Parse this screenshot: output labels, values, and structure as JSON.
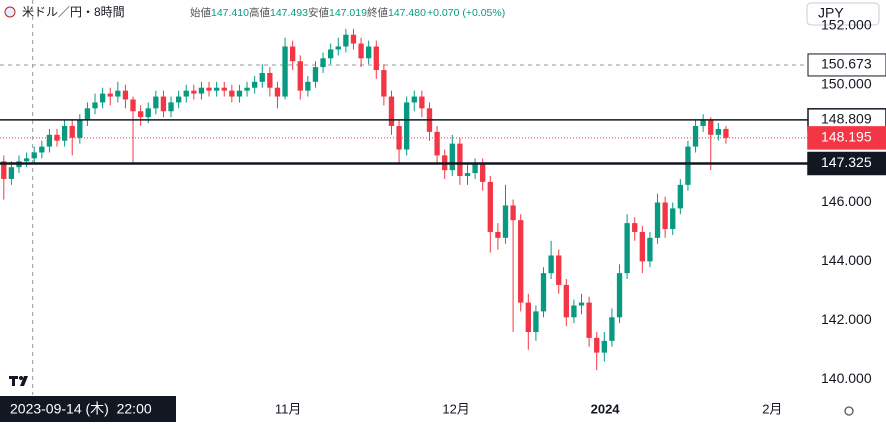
{
  "chart_data": {
    "type": "candlestick",
    "header": {
      "symbol": "米ドル／円・8時間",
      "open_label": "始値",
      "open": "147.410",
      "high_label": "高値",
      "high": "147.493",
      "low_label": "安値",
      "low": "147.019",
      "close_label": "終値",
      "close": "147.480",
      "change": "+0.070 (+0.05%)"
    },
    "currency": "JPY",
    "up_color": "#089981",
    "down_color": "#f23645",
    "open": [
      147.4,
      146.8,
      147.2,
      147.4,
      147.5,
      147.7,
      147.9,
      148.3,
      148.1,
      148.6,
      148.2,
      148.8,
      149.2,
      149.4,
      149.7,
      149.6,
      149.8,
      149.5,
      149.1,
      148.9,
      149.2,
      149.6,
      149.1,
      149.4,
      149.6,
      149.8,
      149.7,
      149.9,
      149.8,
      149.9,
      149.8,
      149.6,
      149.8,
      149.9,
      150.1,
      150.4,
      149.9,
      149.6,
      151.3,
      150.8,
      149.8,
      150.1,
      150.6,
      150.9,
      151.2,
      151.3,
      151.7,
      151.4,
      150.9,
      151.3,
      150.5,
      149.6,
      148.6,
      147.8,
      149.4,
      149.6,
      149.2,
      148.4,
      147.6,
      147.1,
      148.0,
      146.9,
      147.0,
      147.3,
      146.7,
      145.0,
      144.8,
      145.9,
      145.4,
      142.6,
      141.6,
      142.3,
      143.6,
      144.2,
      143.2,
      142.1,
      142.5,
      142.6,
      141.4,
      140.9,
      141.3,
      142.1,
      143.6,
      145.3,
      145.0,
      144.0,
      144.8,
      146.0,
      145.1,
      145.8,
      146.6,
      147.9,
      148.6,
      148.8,
      148.3,
      148.5
    ],
    "high": [
      147.6,
      147.4,
      147.6,
      147.7,
      147.9,
      148.1,
      148.5,
      148.5,
      148.8,
      148.8,
      149.0,
      149.4,
      149.7,
      149.9,
      149.9,
      150.1,
      150.0,
      149.6,
      149.3,
      149.4,
      149.8,
      149.8,
      149.6,
      149.8,
      150.0,
      150.0,
      150.1,
      150.1,
      150.1,
      150.1,
      150.0,
      150.0,
      150.1,
      150.3,
      150.7,
      150.6,
      150.1,
      151.6,
      151.5,
      151.0,
      150.3,
      150.8,
      151.1,
      151.4,
      151.6,
      151.9,
      151.9,
      151.6,
      151.5,
      151.5,
      150.7,
      149.8,
      148.8,
      149.6,
      149.8,
      149.8,
      149.4,
      148.6,
      147.8,
      148.3,
      148.2,
      147.3,
      147.5,
      147.5,
      146.9,
      145.3,
      146.6,
      146.1,
      145.6,
      142.9,
      142.5,
      143.8,
      144.7,
      144.4,
      143.4,
      142.7,
      142.9,
      142.8,
      141.6,
      141.6,
      142.4,
      143.9,
      145.6,
      145.5,
      145.2,
      145.0,
      146.3,
      146.2,
      146.0,
      146.8,
      148.1,
      148.8,
      149.0,
      148.9,
      148.7,
      148.6
    ],
    "low": [
      146.1,
      146.6,
      147.0,
      147.2,
      147.3,
      147.5,
      147.7,
      147.9,
      147.9,
      147.6,
      148.0,
      148.6,
      149.0,
      149.2,
      149.3,
      149.4,
      149.2,
      147.3,
      148.6,
      148.7,
      149.0,
      148.9,
      148.9,
      149.2,
      149.4,
      149.5,
      149.5,
      149.6,
      149.6,
      149.6,
      149.4,
      149.4,
      149.6,
      149.7,
      149.9,
      149.6,
      149.2,
      149.5,
      150.5,
      149.5,
      149.6,
      149.9,
      150.4,
      150.7,
      151.0,
      151.1,
      151.2,
      150.6,
      150.7,
      150.2,
      149.3,
      148.3,
      147.3,
      147.6,
      149.1,
      148.9,
      148.1,
      147.3,
      146.8,
      146.9,
      146.6,
      146.6,
      146.8,
      146.4,
      144.3,
      144.4,
      144.6,
      141.6,
      142.3,
      141.0,
      141.3,
      142.1,
      143.4,
      142.9,
      141.8,
      141.9,
      142.2,
      141.1,
      140.3,
      140.6,
      141.1,
      141.9,
      143.4,
      144.7,
      143.6,
      143.8,
      144.6,
      144.8,
      144.9,
      145.6,
      146.4,
      147.7,
      148.4,
      147.1,
      148.1,
      148.0
    ],
    "close": [
      146.8,
      147.2,
      147.4,
      147.5,
      147.7,
      147.9,
      148.3,
      148.1,
      148.6,
      148.2,
      148.8,
      149.2,
      149.4,
      149.7,
      149.6,
      149.8,
      149.5,
      149.1,
      148.9,
      149.2,
      149.6,
      149.1,
      149.4,
      149.6,
      149.8,
      149.7,
      149.9,
      149.8,
      149.9,
      149.8,
      149.6,
      149.8,
      149.9,
      150.1,
      150.4,
      149.9,
      149.6,
      151.3,
      150.8,
      149.8,
      150.1,
      150.6,
      150.9,
      151.2,
      151.3,
      151.7,
      151.4,
      150.9,
      151.3,
      150.5,
      149.6,
      148.6,
      147.8,
      149.4,
      149.6,
      149.2,
      148.4,
      147.6,
      147.1,
      148.0,
      146.9,
      147.0,
      147.3,
      146.7,
      145.0,
      144.8,
      145.9,
      145.4,
      142.6,
      141.6,
      142.3,
      143.6,
      144.2,
      143.2,
      142.1,
      142.5,
      142.6,
      141.4,
      140.9,
      141.3,
      142.1,
      143.6,
      145.3,
      145.0,
      144.0,
      144.8,
      146.0,
      145.1,
      145.8,
      146.6,
      147.9,
      148.6,
      148.8,
      148.3,
      148.5,
      148.195
    ],
    "xlim": [
      -0.5,
      105.4
    ],
    "xticks": [
      {
        "value": 37.4,
        "label": "11月"
      },
      {
        "value": 59.5,
        "label": "12月"
      },
      {
        "value": 79.1,
        "label": "2024"
      },
      {
        "value": 101.1,
        "label": "2月"
      }
    ],
    "ylim": [
      139.46,
      152.88
    ],
    "yticks": [
      {
        "value": 140,
        "label": "140.000"
      },
      {
        "value": 142,
        "label": "142.000"
      },
      {
        "value": 144,
        "label": "144.000"
      },
      {
        "value": 146,
        "label": "146.000"
      },
      {
        "value": 148,
        "label": "148.000"
      },
      {
        "value": 150,
        "label": "150.000"
      },
      {
        "value": 152,
        "label": "152.000"
      }
    ],
    "hlines": [
      {
        "value": 148.809,
        "color": "#131722",
        "style": "solid"
      },
      {
        "value": 148.195,
        "color": "#f23645",
        "style": "dotted"
      },
      {
        "value": 147.325,
        "color": "#131722",
        "style": "bold"
      }
    ],
    "crosshair": {
      "x": 3.8,
      "y": 150.673,
      "x_label": "2023-09-14 (木)  22:00"
    }
  }
}
